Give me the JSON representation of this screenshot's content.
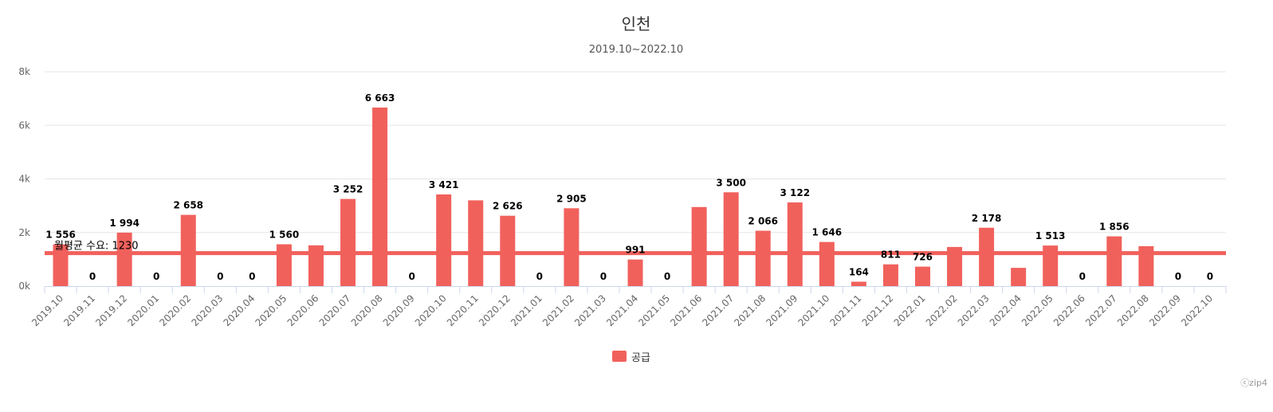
{
  "chart_data": {
    "type": "bar",
    "title": "인천",
    "subtitle": "2019.10~2022.10",
    "categories": [
      "2019.10",
      "2019.11",
      "2019.12",
      "2020.01",
      "2020.02",
      "2020.03",
      "2020.04",
      "2020.05",
      "2020.06",
      "2020.07",
      "2020.08",
      "2020.09",
      "2020.10",
      "2020.11",
      "2020.12",
      "2021.01",
      "2021.02",
      "2021.03",
      "2021.04",
      "2021.05",
      "2021.06",
      "2021.07",
      "2021.08",
      "2021.09",
      "2021.10",
      "2021.11",
      "2021.12",
      "2022.01",
      "2022.02",
      "2022.03",
      "2022.04",
      "2022.05",
      "2022.06",
      "2022.07",
      "2022.08",
      "2022.09",
      "2022.10"
    ],
    "series": [
      {
        "name": "공급",
        "color": "#f1615c",
        "values": [
          1556,
          0,
          1994,
          0,
          2658,
          0,
          0,
          1560,
          1520,
          3252,
          6663,
          0,
          3421,
          3200,
          2626,
          0,
          2905,
          0,
          991,
          0,
          2950,
          3500,
          2066,
          3122,
          1646,
          164,
          811,
          726,
          1460,
          2178,
          680,
          1513,
          0,
          1856,
          1490,
          0,
          0
        ],
        "labels": [
          "1 556",
          "0",
          "1 994",
          "0",
          "2 658",
          "0",
          "0",
          "1 560",
          "",
          "3 252",
          "6 663",
          "0",
          "3 421",
          "",
          "2 626",
          "0",
          "2 905",
          "0",
          "991",
          "0",
          "",
          "3 500",
          "2 066",
          "3 122",
          "1 646",
          "164",
          "811",
          "726",
          "",
          "2 178",
          "",
          "1 513",
          "0",
          "1 856",
          "",
          "0",
          "0"
        ]
      }
    ],
    "reference_line": {
      "value": 1230,
      "label": "월평균 수요: 1230",
      "color": "#f1615c"
    },
    "ylim": [
      0,
      8000
    ],
    "yticks": [
      {
        "value": 0,
        "label": "0k"
      },
      {
        "value": 2000,
        "label": "2k"
      },
      {
        "value": 4000,
        "label": "4k"
      },
      {
        "value": 6000,
        "label": "6k"
      },
      {
        "value": 8000,
        "label": "8k"
      }
    ],
    "grid": true,
    "legend": "bottom-center"
  },
  "credit": "ⓒzip4"
}
